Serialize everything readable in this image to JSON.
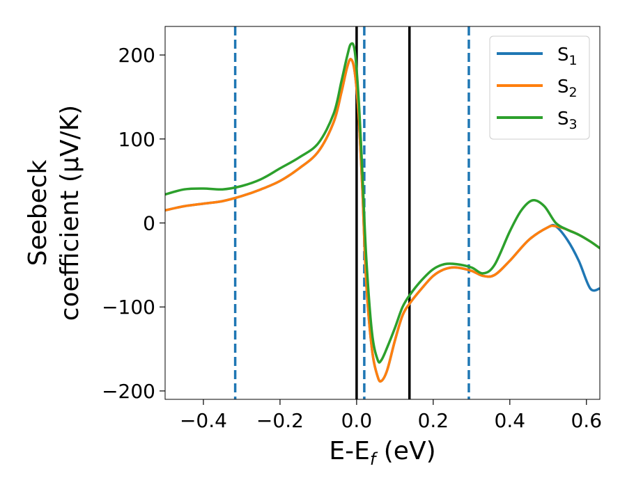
{
  "chart_data": {
    "type": "line",
    "xlabel": "E-E",
    "xlabel_sub": "f",
    "xlabel_unit": " (eV)",
    "ylabel_line1": "Seebeck",
    "ylabel_line2": "coefficient  (μV/K)",
    "xlim": [
      -0.5,
      0.635
    ],
    "ylim": [
      -210,
      234
    ],
    "xticks": [
      -0.4,
      -0.2,
      0.0,
      0.2,
      0.4,
      0.6
    ],
    "xtick_labels": [
      "−0.4",
      "−0.2",
      "0.0",
      "0.2",
      "0.4",
      "0.6"
    ],
    "yticks": [
      200,
      100,
      0,
      -100,
      -200
    ],
    "ytick_labels": [
      "200",
      "100",
      "0",
      "−100",
      "−200"
    ],
    "grid": false,
    "legend": {
      "placement": "top-right",
      "entries": [
        {
          "label": "S",
          "sub": "1",
          "color": "#1f77b4"
        },
        {
          "label": "S",
          "sub": "2",
          "color": "#ff7f0e"
        },
        {
          "label": "S",
          "sub": "3",
          "color": "#2ca02c"
        }
      ]
    },
    "vlines": [
      {
        "x": -0.317,
        "style": "dashed",
        "color": "#1f77b4"
      },
      {
        "x": 0.0,
        "style": "solid",
        "color": "#000000"
      },
      {
        "x": 0.02,
        "style": "dashed",
        "color": "#1f77b4"
      },
      {
        "x": 0.138,
        "style": "solid",
        "color": "#000000"
      },
      {
        "x": 0.293,
        "style": "dashed",
        "color": "#1f77b4"
      }
    ],
    "series": [
      {
        "name": "S1",
        "color": "#1f77b4",
        "points": [
          [
            -0.5,
            15
          ],
          [
            -0.45,
            20
          ],
          [
            -0.4,
            23
          ],
          [
            -0.35,
            26
          ],
          [
            -0.3,
            32
          ],
          [
            -0.25,
            40
          ],
          [
            -0.2,
            50
          ],
          [
            -0.15,
            65
          ],
          [
            -0.1,
            85
          ],
          [
            -0.06,
            120
          ],
          [
            -0.04,
            155
          ],
          [
            -0.025,
            185
          ],
          [
            -0.015,
            195
          ],
          [
            -0.005,
            180
          ],
          [
            0.005,
            130
          ],
          [
            0.015,
            40
          ],
          [
            0.025,
            -70
          ],
          [
            0.04,
            -150
          ],
          [
            0.055,
            -183
          ],
          [
            0.065,
            -188
          ],
          [
            0.08,
            -175
          ],
          [
            0.1,
            -140
          ],
          [
            0.12,
            -110
          ],
          [
            0.14,
            -95
          ],
          [
            0.17,
            -78
          ],
          [
            0.2,
            -63
          ],
          [
            0.23,
            -55
          ],
          [
            0.26,
            -53
          ],
          [
            0.3,
            -57
          ],
          [
            0.33,
            -63
          ],
          [
            0.36,
            -62
          ],
          [
            0.4,
            -45
          ],
          [
            0.45,
            -20
          ],
          [
            0.5,
            -5
          ],
          [
            0.52,
            -4
          ],
          [
            0.55,
            -20
          ],
          [
            0.58,
            -45
          ],
          [
            0.61,
            -78
          ],
          [
            0.635,
            -78
          ]
        ]
      },
      {
        "name": "S2",
        "color": "#ff7f0e",
        "points": [
          [
            -0.5,
            15
          ],
          [
            -0.45,
            20
          ],
          [
            -0.4,
            23
          ],
          [
            -0.35,
            26
          ],
          [
            -0.3,
            32
          ],
          [
            -0.25,
            40
          ],
          [
            -0.2,
            50
          ],
          [
            -0.15,
            65
          ],
          [
            -0.1,
            85
          ],
          [
            -0.06,
            120
          ],
          [
            -0.04,
            155
          ],
          [
            -0.025,
            185
          ],
          [
            -0.015,
            195
          ],
          [
            -0.005,
            180
          ],
          [
            0.005,
            130
          ],
          [
            0.015,
            40
          ],
          [
            0.025,
            -70
          ],
          [
            0.04,
            -150
          ],
          [
            0.055,
            -183
          ],
          [
            0.065,
            -188
          ],
          [
            0.08,
            -175
          ],
          [
            0.1,
            -140
          ],
          [
            0.12,
            -110
          ],
          [
            0.14,
            -95
          ],
          [
            0.17,
            -78
          ],
          [
            0.2,
            -63
          ],
          [
            0.23,
            -55
          ],
          [
            0.26,
            -53
          ],
          [
            0.3,
            -57
          ],
          [
            0.33,
            -63
          ],
          [
            0.36,
            -62
          ],
          [
            0.4,
            -45
          ],
          [
            0.45,
            -20
          ],
          [
            0.5,
            -5
          ],
          [
            0.52,
            -4
          ],
          [
            0.55,
            -8
          ],
          [
            0.58,
            -14
          ],
          [
            0.61,
            -22
          ],
          [
            0.635,
            -30
          ]
        ]
      },
      {
        "name": "S3",
        "color": "#2ca02c",
        "points": [
          [
            -0.5,
            34
          ],
          [
            -0.45,
            40
          ],
          [
            -0.4,
            41
          ],
          [
            -0.35,
            40
          ],
          [
            -0.3,
            44
          ],
          [
            -0.25,
            52
          ],
          [
            -0.2,
            65
          ],
          [
            -0.15,
            78
          ],
          [
            -0.1,
            95
          ],
          [
            -0.06,
            130
          ],
          [
            -0.04,
            168
          ],
          [
            -0.025,
            198
          ],
          [
            -0.015,
            213
          ],
          [
            -0.005,
            205
          ],
          [
            0.005,
            150
          ],
          [
            0.015,
            60
          ],
          [
            0.025,
            -40
          ],
          [
            0.04,
            -130
          ],
          [
            0.055,
            -163
          ],
          [
            0.065,
            -163
          ],
          [
            0.08,
            -148
          ],
          [
            0.1,
            -125
          ],
          [
            0.12,
            -100
          ],
          [
            0.14,
            -85
          ],
          [
            0.17,
            -68
          ],
          [
            0.2,
            -55
          ],
          [
            0.23,
            -49
          ],
          [
            0.26,
            -49
          ],
          [
            0.3,
            -53
          ],
          [
            0.33,
            -60
          ],
          [
            0.36,
            -50
          ],
          [
            0.4,
            -10
          ],
          [
            0.43,
            15
          ],
          [
            0.46,
            27
          ],
          [
            0.49,
            20
          ],
          [
            0.52,
            0
          ],
          [
            0.55,
            -8
          ],
          [
            0.58,
            -14
          ],
          [
            0.61,
            -22
          ],
          [
            0.635,
            -30
          ]
        ]
      }
    ]
  }
}
